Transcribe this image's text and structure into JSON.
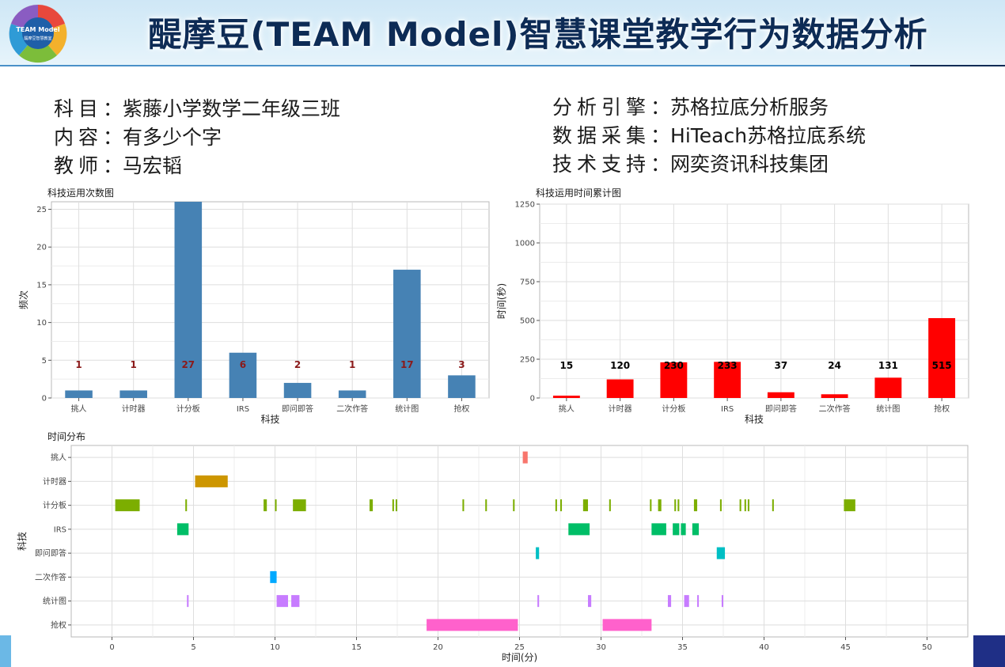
{
  "header": {
    "title": "醍摩豆(TEAM Model)智慧课堂教学行为数据分析",
    "logo": {
      "icon": "team-model-logo-icon",
      "text_main": "TEAM Model",
      "text_sub": "醍摩豆智慧教室"
    }
  },
  "info_left": [
    {
      "label": "科目",
      "value": "紫藤小学数学二年级三班"
    },
    {
      "label": "内容",
      "value": "有多少个字"
    },
    {
      "label": "教师",
      "value": "马宏韬"
    }
  ],
  "info_right": [
    {
      "label": "分析引擎",
      "value": "苏格拉底分析服务"
    },
    {
      "label": "数据采集",
      "value": "HiTeach苏格拉底系统"
    },
    {
      "label": "技术支持",
      "value": "网奕资讯科技集团"
    }
  ],
  "chart_data": [
    {
      "type": "bar",
      "title": "科技运用次数图",
      "xlabel": "科技",
      "ylabel": "频次",
      "categories": [
        "挑人",
        "计时器",
        "计分板",
        "IRS",
        "即问即答",
        "二次作答",
        "统计图",
        "抢权"
      ],
      "values": [
        1,
        1,
        27,
        6,
        2,
        1,
        17,
        3
      ],
      "ylim": [
        0,
        26
      ],
      "yticks": [
        0,
        5,
        10,
        15,
        20,
        25
      ],
      "bar_color": "#4682b4",
      "label_color": "#8b1a1a",
      "grid": true
    },
    {
      "type": "bar",
      "title": "科技运用时间累计图",
      "xlabel": "科技",
      "ylabel": "时间(秒)",
      "categories": [
        "挑人",
        "计时器",
        "计分板",
        "IRS",
        "即问即答",
        "二次作答",
        "统计图",
        "抢权"
      ],
      "values": [
        15,
        120,
        230,
        233,
        37,
        24,
        131,
        515
      ],
      "ylim": [
        0,
        1250
      ],
      "yticks": [
        0,
        250,
        500,
        750,
        1000,
        1250
      ],
      "bar_color": "#ff0000",
      "label_color": "#000000",
      "grid": true
    },
    {
      "type": "timeline",
      "title": "时间分布",
      "xlabel": "时间(分)",
      "ylabel": "科技",
      "xlim": [
        -2.5,
        52.5
      ],
      "xticks": [
        0,
        5,
        10,
        15,
        20,
        25,
        30,
        35,
        40,
        45,
        50
      ],
      "grid": true,
      "rows": [
        {
          "name": "挑人",
          "color": "#f8766d",
          "segments": [
            [
              25.2,
              25.5
            ]
          ]
        },
        {
          "name": "计时器",
          "color": "#cd9600",
          "segments": [
            [
              5.1,
              7.1
            ]
          ]
        },
        {
          "name": "计分板",
          "color": "#7cae00",
          "segments": [
            [
              0.2,
              1.7
            ],
            [
              4.5,
              4.6
            ],
            [
              9.3,
              9.5
            ],
            [
              10.0,
              10.1
            ],
            [
              11.1,
              11.9
            ],
            [
              15.8,
              16.0
            ],
            [
              17.2,
              17.3
            ],
            [
              17.4,
              17.5
            ],
            [
              21.5,
              21.6
            ],
            [
              22.9,
              23.0
            ],
            [
              24.6,
              24.7
            ],
            [
              27.2,
              27.3
            ],
            [
              27.5,
              27.6
            ],
            [
              28.9,
              29.2
            ],
            [
              30.5,
              30.6
            ],
            [
              33.0,
              33.1
            ],
            [
              33.5,
              33.7
            ],
            [
              34.5,
              34.6
            ],
            [
              34.7,
              34.8
            ],
            [
              35.7,
              35.9
            ],
            [
              37.3,
              37.4
            ],
            [
              38.5,
              38.6
            ],
            [
              38.8,
              38.9
            ],
            [
              39.0,
              39.1
            ],
            [
              40.5,
              40.6
            ],
            [
              44.9,
              45.6
            ]
          ]
        },
        {
          "name": "IRS",
          "color": "#00be67",
          "segments": [
            [
              4.0,
              4.7
            ],
            [
              28.0,
              29.3
            ],
            [
              33.1,
              34.0
            ],
            [
              34.4,
              34.8
            ],
            [
              34.9,
              35.2
            ],
            [
              35.6,
              36.0
            ]
          ]
        },
        {
          "name": "即问即答",
          "color": "#00bfc4",
          "segments": [
            [
              26.0,
              26.2
            ],
            [
              37.1,
              37.6
            ]
          ]
        },
        {
          "name": "二次作答",
          "color": "#00a9ff",
          "segments": [
            [
              9.7,
              10.1
            ]
          ]
        },
        {
          "name": "统计图",
          "color": "#c77cff",
          "segments": [
            [
              4.6,
              4.7
            ],
            [
              10.1,
              10.8
            ],
            [
              11.0,
              11.5
            ],
            [
              26.1,
              26.2
            ],
            [
              29.2,
              29.4
            ],
            [
              34.1,
              34.3
            ],
            [
              35.1,
              35.4
            ],
            [
              35.9,
              36.0
            ],
            [
              37.4,
              37.5
            ]
          ]
        },
        {
          "name": "抢权",
          "color": "#ff61cc",
          "segments": [
            [
              19.3,
              24.9
            ],
            [
              30.1,
              33.1
            ]
          ]
        }
      ]
    }
  ]
}
